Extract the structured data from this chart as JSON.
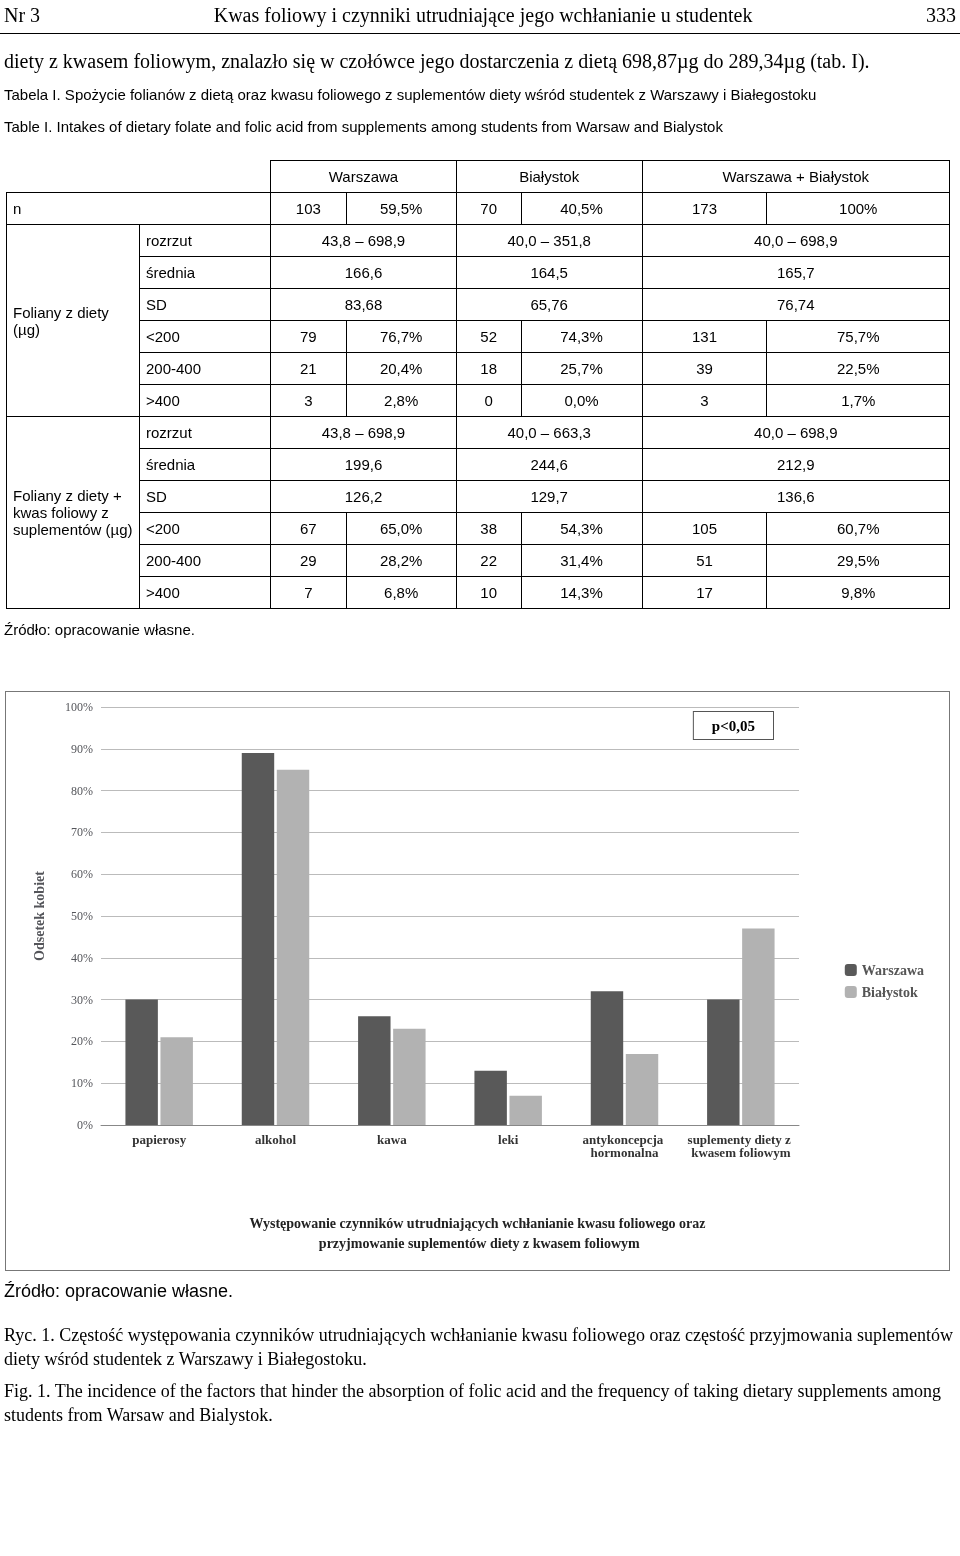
{
  "chart_data": [
    {
      "type": "other",
      "title": "Kwas foliowy i czynniki utrudniające jego wchłanianie u studentek",
      "annotations": [
        "Nr 3",
        "333",
        "diety z kwasem foliowym, znalazło się w czołówce jego dostarczenia z dietą 698,87µg do 289,34µg (tab. I).",
        "Tabela I. Spożycie folianów z dietą oraz kwasu foliowego z suplementów diety wśród studentek z Warszawy i Białegostoku",
        "Table I. Intakes of dietary folate and folic acid from supplements among students from Warsaw and Bialystok",
        "Źródło: opracowanie własne."
      ],
      "categories": [
        "Warszawa",
        "Białystok",
        "Warszawa + Białystok"
      ],
      "y_categories": [
        "n",
        "rozrzut",
        "średnia",
        "SD",
        "<200",
        "200-400",
        ">400",
        "rozrzut",
        "średnia",
        "SD",
        "<200",
        "200-400",
        ">400"
      ],
      "y2_categories": [
        null,
        "Foliany z diety (µg)",
        null,
        null,
        null,
        null,
        null,
        "Foliany z diety + kwas foliowy z suplementów (µg)",
        null,
        null,
        null,
        null,
        null
      ],
      "cell_labels": [
        [
          "103",
          "59,5%",
          "70",
          "40,5%",
          "173",
          "100%"
        ],
        [
          "43,8 – 698,9",
          null,
          "40,0 – 351,8",
          null,
          "40,0 – 698,9",
          null
        ],
        [
          "166,6",
          null,
          "164,5",
          null,
          "165,7",
          null
        ],
        [
          "83,68",
          null,
          "65,76",
          null,
          "76,74",
          null
        ],
        [
          "79",
          "76,7%",
          "52",
          "74,3%",
          "131",
          "75,7%"
        ],
        [
          "21",
          "20,4%",
          "18",
          "25,7%",
          "39",
          "22,5%"
        ],
        [
          "3",
          "2,8%",
          "0",
          "0,0%",
          "3",
          "1,7%"
        ],
        [
          "43,8 – 698,9",
          null,
          "40,0 – 663,3",
          null,
          "40,0 – 698,9",
          null
        ],
        [
          "199,6",
          null,
          "244,6",
          null,
          "212,9",
          null
        ],
        [
          "126,2",
          null,
          "129,7",
          null,
          "136,6",
          null
        ],
        [
          "67",
          "65,0%",
          "38",
          "54,3%",
          "105",
          "60,7%"
        ],
        [
          "29",
          "28,2%",
          "22",
          "31,4%",
          "51",
          "29,5%"
        ],
        [
          "7",
          "6,8%",
          "10",
          "14,3%",
          "17",
          "9,8%"
        ]
      ]
    },
    {
      "type": "bar",
      "title": "Występowanie czynników utrudniających wchłanianie kwasu foliowego oraz przyjmowanie suplementów diety z kwasem foliowym",
      "ylabel": "Odsetek kobiet",
      "categories": [
        "papierosy",
        "alkohol",
        "kawa",
        "leki",
        "antykoncepcja hormonalna",
        "suplementy diety z kwasem foliowym"
      ],
      "series": [
        {
          "name": "Warszawa",
          "color": "#595959",
          "values": [
            30,
            89,
            26,
            13,
            32,
            30
          ]
        },
        {
          "name": "Białystok",
          "color": "#b2b2b2",
          "values": [
            21,
            85,
            23,
            7,
            17,
            47
          ]
        }
      ],
      "ylim": [
        0,
        100
      ],
      "yticks": [
        {
          "value": 0,
          "label": "0%"
        },
        {
          "value": 10,
          "label": "10%"
        },
        {
          "value": 20,
          "label": "20%"
        },
        {
          "value": 30,
          "label": "30%"
        },
        {
          "value": 40,
          "label": "40%"
        },
        {
          "value": 50,
          "label": "50%"
        },
        {
          "value": 60,
          "label": "60%"
        },
        {
          "value": 70,
          "label": "70%"
        },
        {
          "value": 80,
          "label": "80%"
        },
        {
          "value": 90,
          "label": "90%"
        },
        {
          "value": 100,
          "label": "100%"
        }
      ],
      "grid": "y",
      "legend": "right",
      "annotations": [
        "p<0,05",
        "Źródło: opracowanie własne.",
        "Ryc. 1. Częstość występowania czynników utrudniających wchłanianie kwasu foliowego oraz częstość przyjmowania suplementów diety wśród studentek z Warszawy i Białegostoku.",
        "Fig. 1. The incidence of the factors that hinder the absorption of folic acid and the frequency of taking dietary supplements among students from Warsaw and Bialystok."
      ]
    }
  ]
}
